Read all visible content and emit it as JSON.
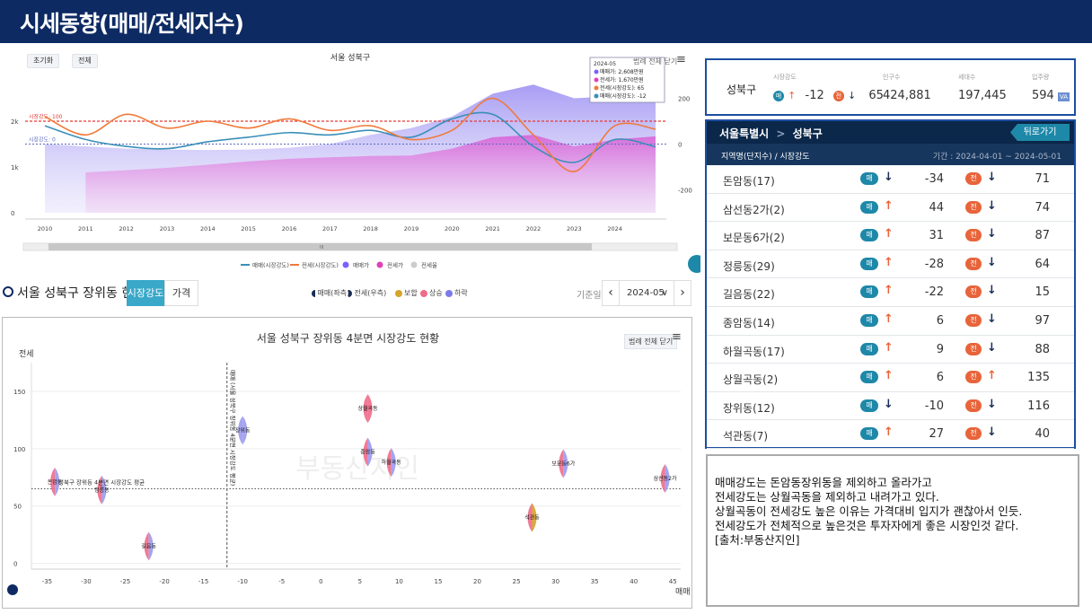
{
  "page_title": "시세동향(매매/전세지수)",
  "top_chart": {
    "title": "서울 성북구",
    "btn_reset": "초기화",
    "btn_all": "전체",
    "legend_close": "범례 전체 닫기",
    "tooltip": {
      "date": "2024-05",
      "lines": [
        "매매가: 2,608만원",
        "전세가: 1,670만원",
        "전세(시장강도): 65",
        "매매(시장강도): -12"
      ],
      "colors": [
        "#7b61ff",
        "#e040b8",
        "#f07a3a",
        "#3a8fb8"
      ]
    },
    "ref_label_1": "시장강도: 100",
    "ref_label_2": "시장강도: 0",
    "y_left_ticks": [
      "2k",
      "1k",
      "0"
    ],
    "y_right_ticks": [
      "200",
      "0",
      "-200"
    ],
    "x_ticks": [
      "2010",
      "2011",
      "2012",
      "2013",
      "2014",
      "2015",
      "2016",
      "2017",
      "2018",
      "2019",
      "2020",
      "2021",
      "2022",
      "2023",
      "2024"
    ],
    "scrollbar_grip": "III",
    "legend": [
      {
        "label": "매매(시장강도)",
        "color": "#3a8fb8",
        "shape": "line"
      },
      {
        "label": "전세(시장강도)",
        "color": "#f07a3a",
        "shape": "line"
      },
      {
        "label": "매매가",
        "color": "#7b61ff",
        "shape": "dot"
      },
      {
        "label": "전세가",
        "color": "#e040b8",
        "shape": "dot"
      },
      {
        "label": "전세율",
        "color": "#cccccc",
        "shape": "dot"
      }
    ]
  },
  "info_box": {
    "region": "성북구",
    "strength_label": "시장강도",
    "strength_m_badge": "매",
    "strength_m_value": "-12",
    "strength_j_badge": "전",
    "strength_j_value": "65",
    "population_label": "인구수",
    "population": "424,881",
    "households_label": "세대수",
    "households": "197,445",
    "move_in_label": "입주량",
    "move_in": "594",
    "move_in_badge": "VA"
  },
  "table_panel": {
    "breadcrumb_city": "서울특별시",
    "breadcrumb_sep": ">",
    "breadcrumb_gu": "성북구",
    "back_button": "뒤로가기",
    "header_left": "지역명(단지수) / 시장강도",
    "header_right": "기간 : 2024-04-01 ~ 2024-05-01",
    "m_badge": "매",
    "j_badge": "전",
    "rows": [
      {
        "name": "돈암동(17)",
        "m_dir": "down",
        "m": "-34",
        "j_dir": "down",
        "j": "71"
      },
      {
        "name": "삼선동2가(2)",
        "m_dir": "up",
        "m": "44",
        "j_dir": "down",
        "j": "74"
      },
      {
        "name": "보문동6가(2)",
        "m_dir": "up",
        "m": "31",
        "j_dir": "down",
        "j": "87"
      },
      {
        "name": "정릉동(29)",
        "m_dir": "up",
        "m": "-28",
        "j_dir": "down",
        "j": "64"
      },
      {
        "name": "길음동(22)",
        "m_dir": "up",
        "m": "-22",
        "j_dir": "down",
        "j": "15"
      },
      {
        "name": "종암동(14)",
        "m_dir": "up",
        "m": "6",
        "j_dir": "down",
        "j": "97"
      },
      {
        "name": "하월곡동(17)",
        "m_dir": "up",
        "m": "9",
        "j_dir": "down",
        "j": "88"
      },
      {
        "name": "상월곡동(2)",
        "m_dir": "up",
        "m": "6",
        "j_dir": "up",
        "j": "135"
      },
      {
        "name": "장위동(12)",
        "m_dir": "down",
        "m": "-10",
        "j_dir": "down",
        "j": "116"
      },
      {
        "name": "석관동(7)",
        "m_dir": "up",
        "m": "27",
        "j_dir": "down",
        "j": "40"
      }
    ]
  },
  "comment": [
    "매매강도는 돈암동장위동을 제외하고 올라가고",
    "전세강도는 상월곡동을 제외하고 내려가고 있다.",
    "상월곡동이 전세강도 높은 이유는 가격대비 입지가 괜찮아서 인듯.",
    "전세강도가 전체적으로 높은것은 투자자에게 좋은 시장인것 같다.",
    "[출처:부동산지인]"
  ],
  "controls": {
    "section_title": "서울 성북구 장위동 현황",
    "tab_strength": "시장강도",
    "tab_price": "가격",
    "legend": [
      {
        "label": "매매(좌측)",
        "color": "#1a2e55"
      },
      {
        "label": "전세(우측)",
        "color": "#1a2e55"
      },
      {
        "label": "보합",
        "color": "#d4a528"
      },
      {
        "label": "상승",
        "color": "#f06b8a"
      },
      {
        "label": "하락",
        "color": "#7b7be8"
      }
    ],
    "base_label": "기준일",
    "month": "2024-05",
    "prev": "‹",
    "next": "›",
    "chev": "∨"
  },
  "bubble_chart": {
    "title": "서울 성북구 장위동 4분면 시장강도 현황",
    "legend_close": "범례 전체 닫기",
    "xlabel": "매매",
    "ylabel": "전세",
    "avg_h_label": "성북구 장위동 4분면 시장강도 평균",
    "avg_v_label": "매매 (서울 성북구 장위동 4분면 시장강도 평균)",
    "watermark": "부동산지인",
    "x_ticks": [
      "-35",
      "-30",
      "-25",
      "-20",
      "-15",
      "-10",
      "-5",
      "0",
      "5",
      "10",
      "15",
      "20",
      "25",
      "30",
      "35",
      "40",
      "45"
    ],
    "y_ticks": [
      "0",
      "50",
      "100",
      "150"
    ]
  },
  "chart_data": [
    {
      "type": "line",
      "title": "서울 성북구",
      "x": [
        "2010",
        "2011",
        "2012",
        "2013",
        "2014",
        "2015",
        "2016",
        "2017",
        "2018",
        "2019",
        "2020",
        "2021",
        "2022",
        "2023",
        "2024",
        "2024-05"
      ],
      "series": [
        {
          "name": "매매가",
          "axis": "left",
          "values": [
            1500,
            1450,
            1400,
            1380,
            1370,
            1380,
            1420,
            1500,
            1700,
            1850,
            2100,
            2600,
            2800,
            2500,
            2550,
            2608
          ]
        },
        {
          "name": "전세가",
          "axis": "left",
          "values": [
            null,
            880,
            930,
            980,
            1050,
            1120,
            1180,
            1210,
            1240,
            1250,
            1400,
            1650,
            1700,
            1450,
            1600,
            1670
          ]
        },
        {
          "name": "매매(시장강도)",
          "axis": "right",
          "values": [
            80,
            20,
            -10,
            -20,
            10,
            30,
            50,
            40,
            60,
            30,
            110,
            130,
            -10,
            -80,
            20,
            -12
          ]
        },
        {
          "name": "전세(시장강도)",
          "axis": "right",
          "values": [
            120,
            40,
            130,
            70,
            100,
            70,
            110,
            60,
            80,
            20,
            60,
            200,
            40,
            -120,
            80,
            65
          ]
        }
      ],
      "reference_lines": [
        {
          "label": "시장강도: 100",
          "value": 100
        },
        {
          "label": "시장강도: 0",
          "value": 0
        }
      ],
      "ylim_left": [
        0,
        3000
      ],
      "ylim_right": [
        -300,
        300
      ]
    },
    {
      "type": "scatter",
      "title": "서울 성북구 장위동 4분면 시장강도 현황",
      "xlabel": "매매",
      "ylabel": "전세",
      "xlim": [
        -37,
        46
      ],
      "ylim": [
        -5,
        175
      ],
      "avg": {
        "x": -12,
        "y": 65
      },
      "points": [
        {
          "name": "돈암동",
          "x": -34,
          "y": 71,
          "left": "#f06b8a",
          "right": "#9a9aee"
        },
        {
          "name": "정릉동",
          "x": -28,
          "y": 64,
          "left": "#f06b8a",
          "right": "#9a9aee"
        },
        {
          "name": "길음동",
          "x": -22,
          "y": 15,
          "left": "#f06b8a",
          "right": "#9a9aee"
        },
        {
          "name": "장위동",
          "x": -10,
          "y": 116,
          "left": "#9a9aee",
          "right": "#9a9aee"
        },
        {
          "name": "상월곡동",
          "x": 6,
          "y": 135,
          "left": "#f06b8a",
          "right": "#f06b8a"
        },
        {
          "name": "종암동",
          "x": 6,
          "y": 97,
          "left": "#f06b8a",
          "right": "#9a9aee"
        },
        {
          "name": "하월곡동",
          "x": 9,
          "y": 88,
          "left": "#f06b8a",
          "right": "#9a9aee"
        },
        {
          "name": "석관동",
          "x": 27,
          "y": 40,
          "left": "#f06b8a",
          "right": "#d4a528"
        },
        {
          "name": "보문동6가",
          "x": 31,
          "y": 87,
          "left": "#f06b8a",
          "right": "#9a9aee"
        },
        {
          "name": "삼선동2가",
          "x": 44,
          "y": 74,
          "left": "#f06b8a",
          "right": "#9a9aee"
        }
      ]
    }
  ]
}
